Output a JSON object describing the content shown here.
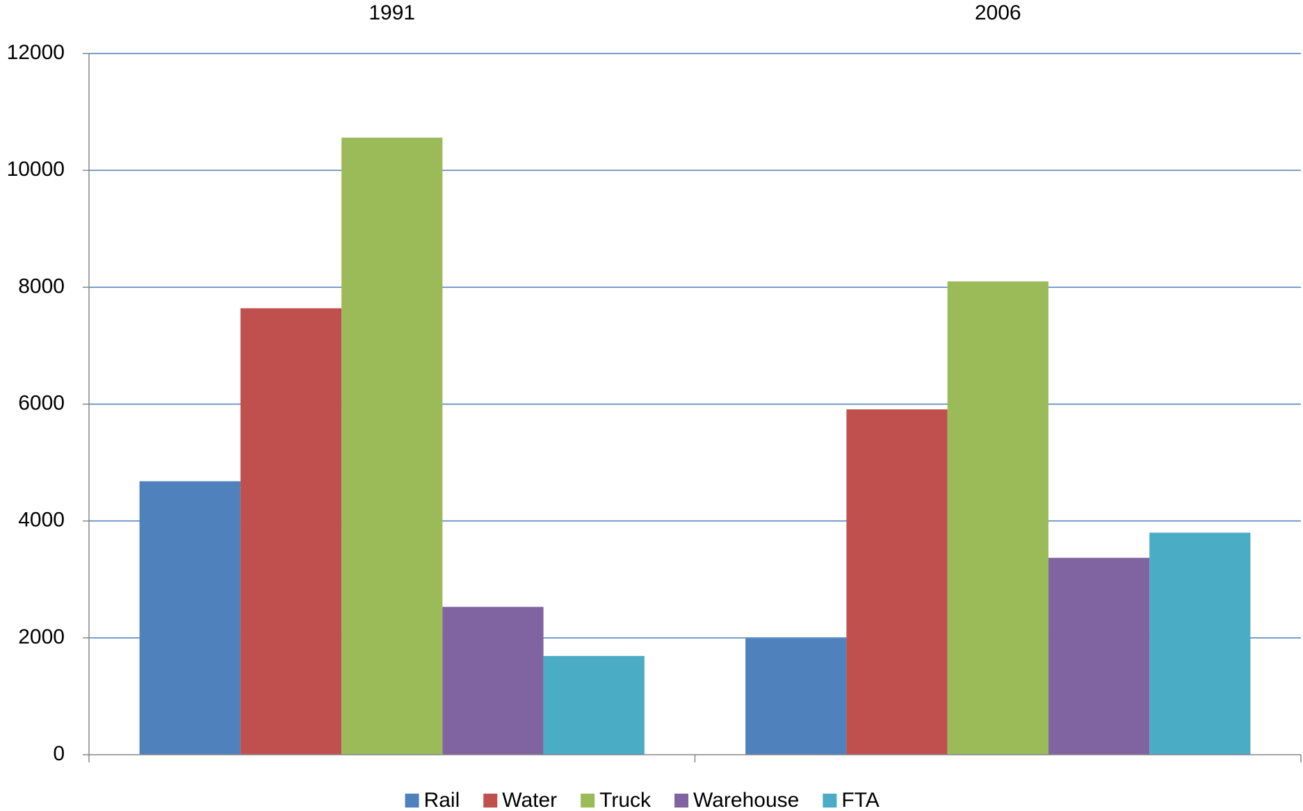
{
  "chart_data": {
    "type": "bar",
    "categories": [
      "1991",
      "2006"
    ],
    "series": [
      {
        "name": "Rail",
        "color": "#4f81bd",
        "values": [
          4680,
          1990
        ]
      },
      {
        "name": "Water",
        "color": "#c0504d",
        "values": [
          7640,
          5910
        ]
      },
      {
        "name": "Truck",
        "color": "#9bbb59",
        "values": [
          10560,
          8100
        ]
      },
      {
        "name": "Warehouse",
        "color": "#8064a2",
        "values": [
          2530,
          3370
        ]
      },
      {
        "name": "FTA",
        "color": "#4bacc6",
        "values": [
          1690,
          3800
        ]
      }
    ],
    "ylim": [
      0,
      12000
    ],
    "yticks": [
      0,
      2000,
      4000,
      6000,
      8000,
      10000,
      12000
    ],
    "grid": true,
    "legend": "bottom"
  }
}
